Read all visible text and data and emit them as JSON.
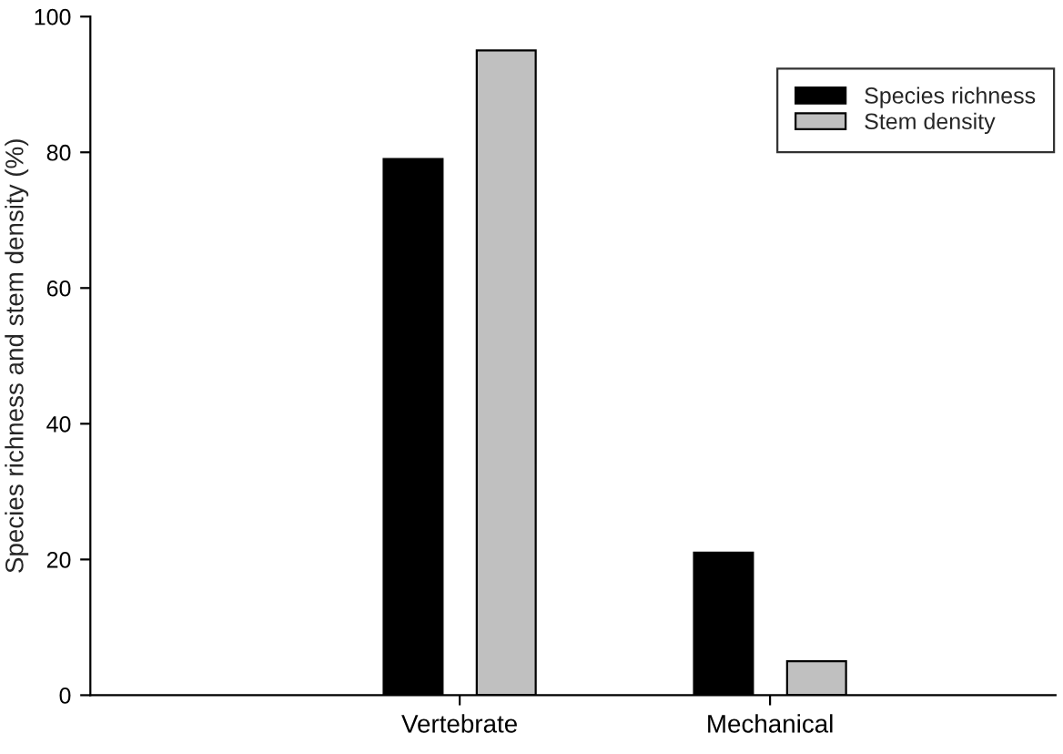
{
  "chart_data": {
    "type": "bar",
    "ylabel": "Species richness and stem density (%)",
    "categories": [
      "Vertebrate",
      "Mechanical"
    ],
    "series": [
      {
        "name": "Species richness",
        "color": "#000000",
        "values": [
          79,
          21
        ]
      },
      {
        "name": "Stem density",
        "color": "#c0c0c0",
        "values": [
          95,
          5
        ]
      }
    ],
    "ylim": [
      0,
      100
    ],
    "yticks": [
      0,
      20,
      40,
      60,
      80,
      100
    ],
    "legend": "top right",
    "grid": false
  }
}
